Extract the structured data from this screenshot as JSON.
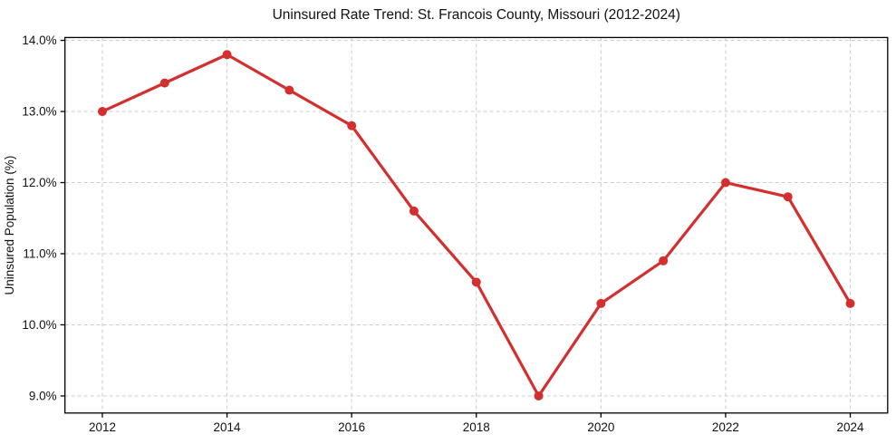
{
  "chart_data": {
    "type": "line",
    "title": "Uninsured Rate Trend: St. Francois County, Missouri (2012-2024)",
    "xlabel": "",
    "ylabel": "Uninsured Population (%)",
    "x": [
      2012,
      2013,
      2014,
      2015,
      2016,
      2017,
      2018,
      2019,
      2020,
      2021,
      2022,
      2023,
      2024
    ],
    "values": [
      13.0,
      13.4,
      13.8,
      13.3,
      12.8,
      11.6,
      10.6,
      9.0,
      10.3,
      10.9,
      12.0,
      11.8,
      10.3
    ],
    "xticks": [
      2012,
      2014,
      2016,
      2018,
      2020,
      2022,
      2024
    ],
    "xtick_labels": [
      "2012",
      "2014",
      "2016",
      "2018",
      "2020",
      "2022",
      "2024"
    ],
    "yticks": [
      9.0,
      10.0,
      11.0,
      12.0,
      13.0,
      14.0
    ],
    "ytick_labels": [
      "9.0%",
      "10.0%",
      "11.0%",
      "12.0%",
      "13.0%",
      "14.0%"
    ],
    "xlim": [
      2011.4,
      2024.6
    ],
    "ylim": [
      8.76,
      14.04
    ],
    "grid": true,
    "legend": false,
    "line_color": "#d32f2f",
    "marker_color": "#d32f2f",
    "grid_color": "#cccccc",
    "spine_color": "#000000",
    "text_color": "#111111"
  }
}
